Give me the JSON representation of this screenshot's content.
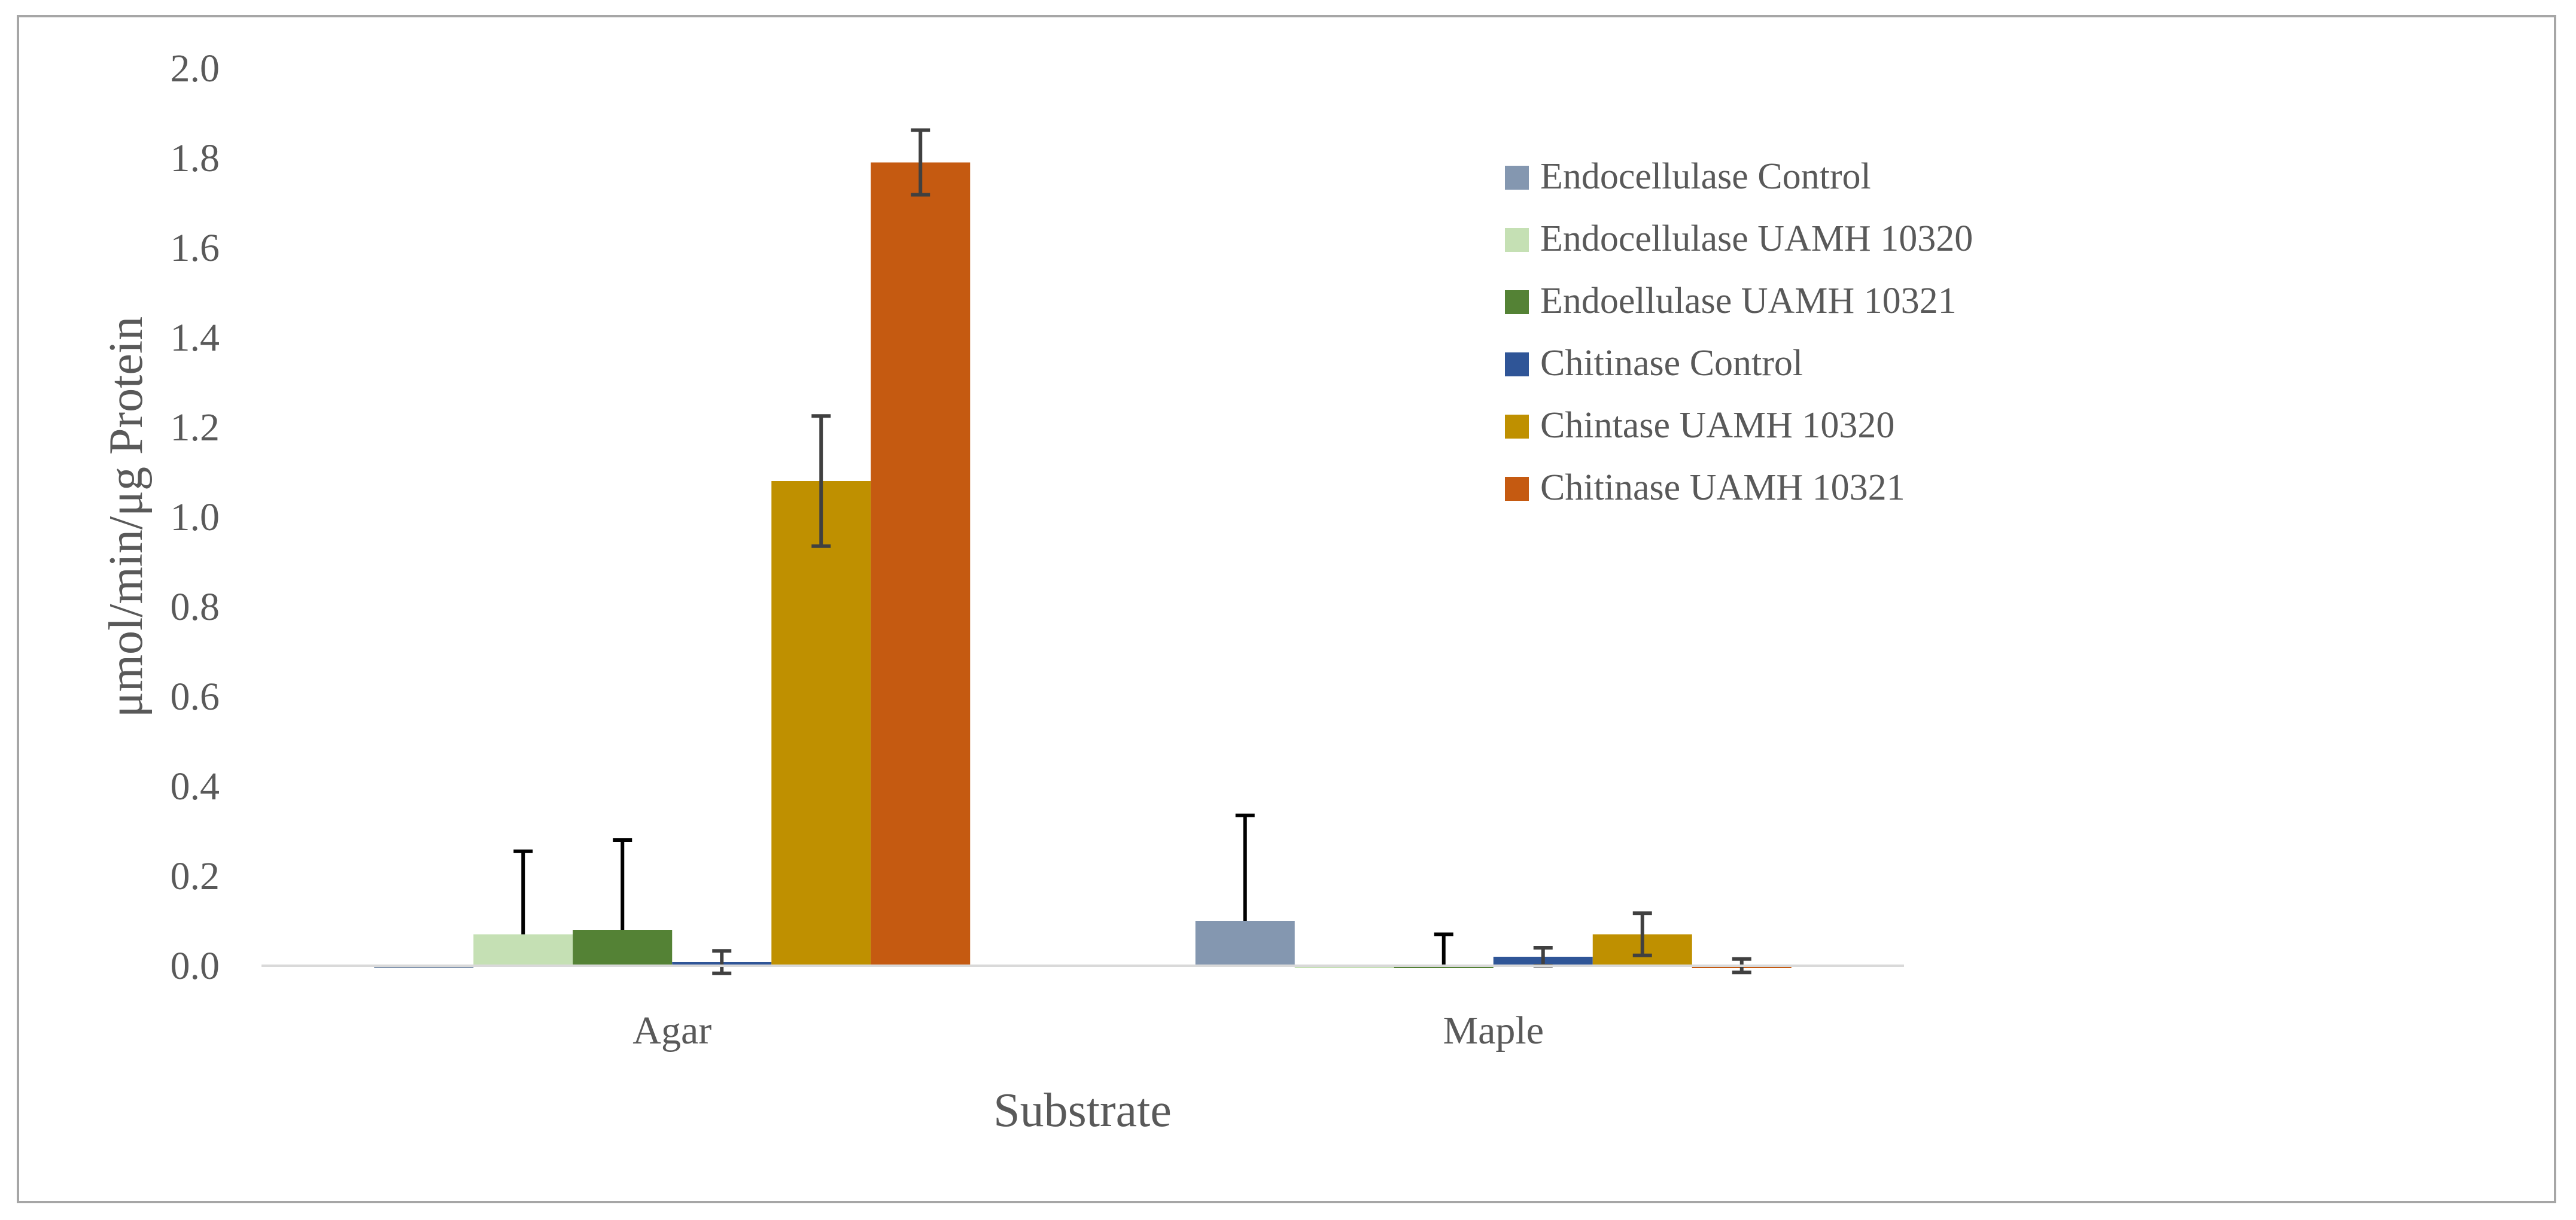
{
  "chart_data": {
    "type": "bar",
    "title": "",
    "xlabel": "Substrate",
    "ylabel": "μmol/min/μg Protein",
    "categories": [
      "Agar",
      "Maple"
    ],
    "ylim": [
      0,
      2.0
    ],
    "yticks": [
      "0.0",
      "0.2",
      "0.4",
      "0.6",
      "0.8",
      "1.0",
      "1.2",
      "1.4",
      "1.6",
      "1.8",
      "2.0"
    ],
    "gridlines": false,
    "legend_position": "right",
    "series": [
      {
        "name": "Endocellulase Control",
        "color": "#8497b0",
        "values": [
          -0.005,
          0.1
        ],
        "errors": [
          0.0,
          0.235
        ],
        "error_color": "#000000"
      },
      {
        "name": "Endocellulase UAMH 10320",
        "color": "#c5e0b4",
        "values": [
          0.07,
          -0.005
        ],
        "errors": [
          0.185,
          0.0
        ],
        "error_color": "#000000"
      },
      {
        "name": "Endoellulase UAMH 10321",
        "color": "#548235",
        "values": [
          0.08,
          0.0
        ],
        "errors": [
          0.2,
          0.07
        ],
        "error_color": "#000000"
      },
      {
        "name": "Chitinase Control",
        "color": "#2f5597",
        "values": [
          0.008,
          0.02
        ],
        "errors": [
          0.025,
          0.02
        ],
        "error_color": "#404040"
      },
      {
        "name": "Chintase UAMH 10320",
        "color": "#bf9000",
        "values": [
          1.08,
          0.07
        ],
        "errors": [
          0.145,
          0.047
        ],
        "error_color": "#404040"
      },
      {
        "name": "Chitinase UAMH 10321",
        "color": "#c55a11",
        "values": [
          1.79,
          -0.005
        ],
        "errors": [
          0.072,
          0.015
        ],
        "error_color": "#404040"
      }
    ]
  }
}
